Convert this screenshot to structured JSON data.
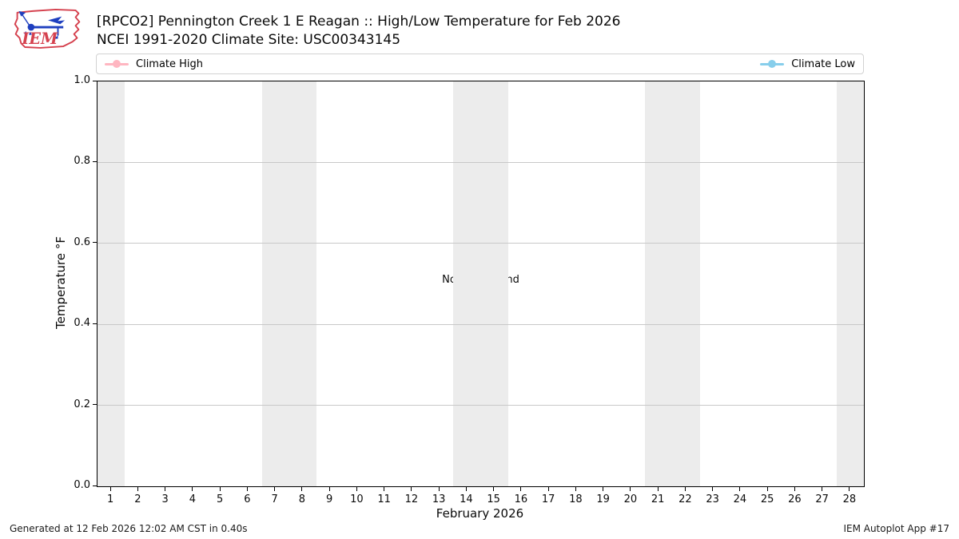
{
  "header": {
    "title": "[RPCO2] Pennington Creek 1 E Reagan :: High/Low Temperature for Feb 2026",
    "subtitle": "NCEI 1991-2020 Climate Site: USC00343145",
    "logo_text": "IEM",
    "logo_red": "#d5414e",
    "logo_blue": "#1e3fbf"
  },
  "legend": {
    "items": [
      {
        "label": "Climate High",
        "color": "#ffb6c1"
      },
      {
        "label": "Climate Low",
        "color": "#87ceeb"
      }
    ]
  },
  "chart_data": {
    "type": "line",
    "title": "[RPCO2] Pennington Creek 1 E Reagan :: High/Low Temperature for Feb 2026",
    "subtitle": "NCEI 1991-2020 Climate Site: USC00343145",
    "xlabel": "February 2026",
    "ylabel": "Temperature °F",
    "no_data_text": "No Data Found",
    "xlim": [
      0.5,
      28.5
    ],
    "ylim": [
      0.0,
      1.0
    ],
    "xticks": [
      1,
      2,
      3,
      4,
      5,
      6,
      7,
      8,
      9,
      10,
      11,
      12,
      13,
      14,
      15,
      16,
      17,
      18,
      19,
      20,
      21,
      22,
      23,
      24,
      25,
      26,
      27,
      28
    ],
    "yticks": [
      0.0,
      0.2,
      0.4,
      0.6,
      0.8,
      1.0
    ],
    "grid": "horizontal",
    "grid_color": "#c8c8c8",
    "weekend_bands": [
      [
        0.5,
        1.5
      ],
      [
        6.5,
        8.5
      ],
      [
        13.5,
        15.5
      ],
      [
        20.5,
        22.5
      ],
      [
        27.5,
        28.5
      ]
    ],
    "band_color": "#ececec",
    "legend_position": "top",
    "series": [
      {
        "name": "Climate High",
        "color": "#ffb6c1",
        "values": []
      },
      {
        "name": "Climate Low",
        "color": "#87ceeb",
        "values": []
      }
    ]
  },
  "footer": {
    "generated": "Generated at 12 Feb 2026 12:02 AM CST in 0.40s",
    "app": "IEM Autoplot App #17"
  }
}
